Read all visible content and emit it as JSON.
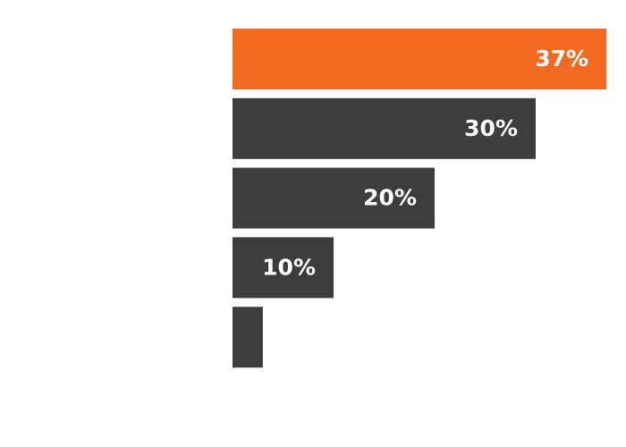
{
  "chart_data": {
    "type": "bar",
    "orientation": "horizontal",
    "categories": [
      null,
      null,
      null,
      null,
      null
    ],
    "values": [
      37,
      30,
      20,
      10,
      3
    ],
    "value_labels": [
      "37%",
      "30%",
      "20%",
      "10%",
      null
    ],
    "colors": [
      "#f26a21",
      "#3d3d3d",
      "#3d3d3d",
      "#3d3d3d",
      "#3d3d3d"
    ]
  }
}
